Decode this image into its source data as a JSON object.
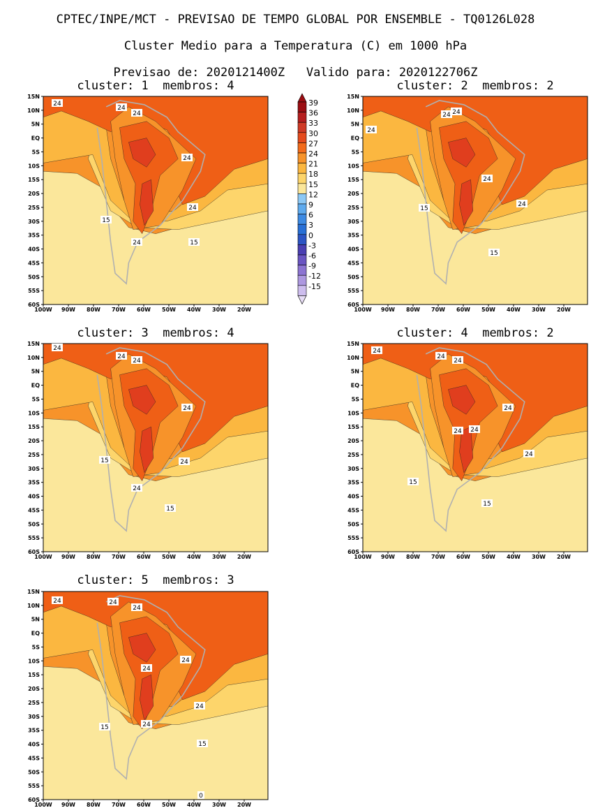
{
  "header": {
    "line1": "CPTEC/INPE/MCT - PREVISAO DE TEMPO GLOBAL POR ENSEMBLE - TQ0126L028",
    "line2": "Cluster Medio para a Temperatura (C) em 1000 hPa",
    "line3": "Previsao de: 2020121400Z   Valido para: 2020122706Z"
  },
  "panels": [
    {
      "title": "cluster: 1  membros: 4",
      "labels": [
        [
          "24",
          82,
          148
        ],
        [
          "24",
          174,
          154
        ],
        [
          "24",
          196,
          162
        ],
        [
          "24",
          268,
          226
        ],
        [
          "24",
          276,
          297
        ],
        [
          "15",
          152,
          315
        ],
        [
          "24",
          196,
          347
        ],
        [
          "15",
          278,
          347
        ]
      ]
    },
    {
      "title": "cluster: 2  membros: 2",
      "labels": [
        [
          "24",
          640,
          164
        ],
        [
          "24",
          654,
          160
        ],
        [
          "24",
          532,
          186
        ],
        [
          "24",
          698,
          256
        ],
        [
          "15",
          608,
          298
        ],
        [
          "24",
          748,
          292
        ],
        [
          "15",
          708,
          362
        ]
      ]
    },
    {
      "title": "cluster: 3  membros: 4",
      "labels": [
        [
          "24",
          82,
          498
        ],
        [
          "24",
          174,
          510
        ],
        [
          "24",
          196,
          516
        ],
        [
          "24",
          268,
          584
        ],
        [
          "15",
          150,
          659
        ],
        [
          "24",
          264,
          661
        ],
        [
          "24",
          196,
          699
        ],
        [
          "15",
          244,
          728
        ]
      ]
    },
    {
      "title": "cluster: 4  membros: 2",
      "labels": [
        [
          "24",
          540,
          502
        ],
        [
          "24",
          632,
          510
        ],
        [
          "24",
          656,
          516
        ],
        [
          "24",
          728,
          584
        ],
        [
          "24",
          656,
          617
        ],
        [
          "24",
          680,
          615
        ],
        [
          "24",
          758,
          650
        ],
        [
          "15",
          592,
          690
        ],
        [
          "15",
          698,
          721
        ]
      ]
    },
    {
      "title": "cluster: 5  membros: 3",
      "labels": [
        [
          "24",
          82,
          860
        ],
        [
          "24",
          162,
          862
        ],
        [
          "24",
          196,
          870
        ],
        [
          "24",
          266,
          945
        ],
        [
          "24",
          210,
          957
        ],
        [
          "24",
          286,
          1011
        ],
        [
          "24",
          210,
          1037
        ],
        [
          "15",
          150,
          1041
        ],
        [
          "15",
          290,
          1065
        ],
        [
          "0",
          288,
          1139
        ]
      ]
    }
  ],
  "lat_labels": [
    "15N",
    "10N",
    "5N",
    "EQ",
    "5S",
    "10S",
    "15S",
    "20S",
    "25S",
    "30S",
    "35S",
    "40S",
    "45S",
    "50S",
    "55S",
    "60S"
  ],
  "lon_labels": [
    "100W",
    "90W",
    "80W",
    "70W",
    "60W",
    "50W",
    "40W",
    "30W",
    "20W"
  ],
  "colorbar": {
    "labels": [
      "39",
      "36",
      "33",
      "30",
      "27",
      "24",
      "21",
      "18",
      "15",
      "12",
      "9",
      "6",
      "3",
      "0",
      "-3",
      "-6",
      "-9",
      "-12",
      "-15"
    ],
    "colors": [
      "#9b0d12",
      "#b51e1e",
      "#cf3a26",
      "#e54b1d",
      "#f36b1b",
      "#f7932a",
      "#fbb740",
      "#fdd56b",
      "#fbe79b",
      "#8cc8f5",
      "#5eaaee",
      "#3d8ae3",
      "#286fd6",
      "#2c54c4",
      "#4a3fb2",
      "#6a55c2",
      "#8c74d2",
      "#ad98e0",
      "#cdbdee"
    ]
  },
  "colors": {
    "hot": "#ef5f16",
    "warm": "#f7932a",
    "mild": "#fbb740",
    "cool": "#fdd56b",
    "pale": "#fbe79b",
    "sky": "#8cc8f5",
    "blue": "#4d9aea",
    "deep": "#2c6ad4",
    "navy": "#2b4fc0",
    "purple": "#4f3bb0",
    "land": "#b0b0b0",
    "hotcore": "#e03e1e"
  }
}
